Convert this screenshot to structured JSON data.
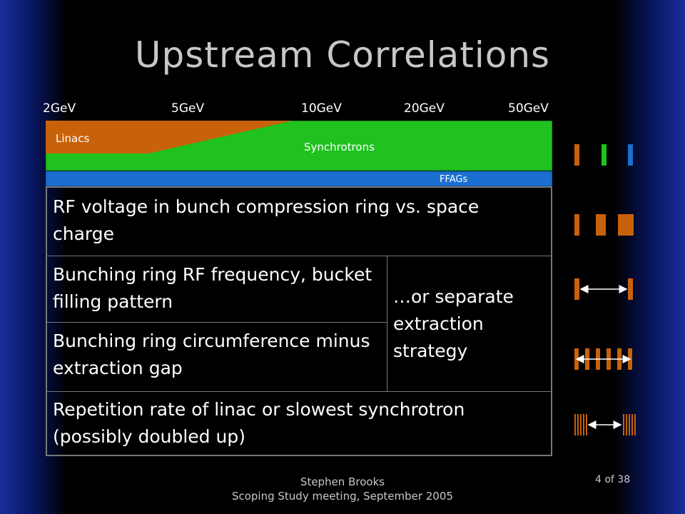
{
  "title": "Upstream Correlations",
  "energy_labels": [
    "2GeV",
    "5GeV",
    "10GeV",
    "20GeV",
    "50GeV"
  ],
  "accelerators": {
    "linacs": "Linacs",
    "synchrotrons": "Synchrotrons",
    "ffags": "FFAGs"
  },
  "rows": {
    "row1": "RF voltage in bunch compression ring vs. space charge",
    "row2": "Bunching ring RF frequency, bucket filling pattern",
    "row3": "Bunching ring circumference minus extraction gap",
    "row_alt": "…or separate extraction strategy",
    "row4": "Repetition rate of linac or slowest synchrotron (possibly doubled up)"
  },
  "footer": {
    "author": "Stephen Brooks",
    "meeting": "Scoping Study meeting, September 2005",
    "page": "4 of 38"
  },
  "colors": {
    "linac": "#c8620a",
    "synchrotron": "#1fc21f",
    "ffag": "#1a6fd0",
    "background": "#000000",
    "title": "#c7c7c7"
  },
  "icons": [
    "three-colored-bars-icon",
    "widening-bars-icon",
    "bar-spacing-arrow-icon",
    "bar-train-arrow-icon",
    "dense-bar-groups-arrow-icon"
  ]
}
